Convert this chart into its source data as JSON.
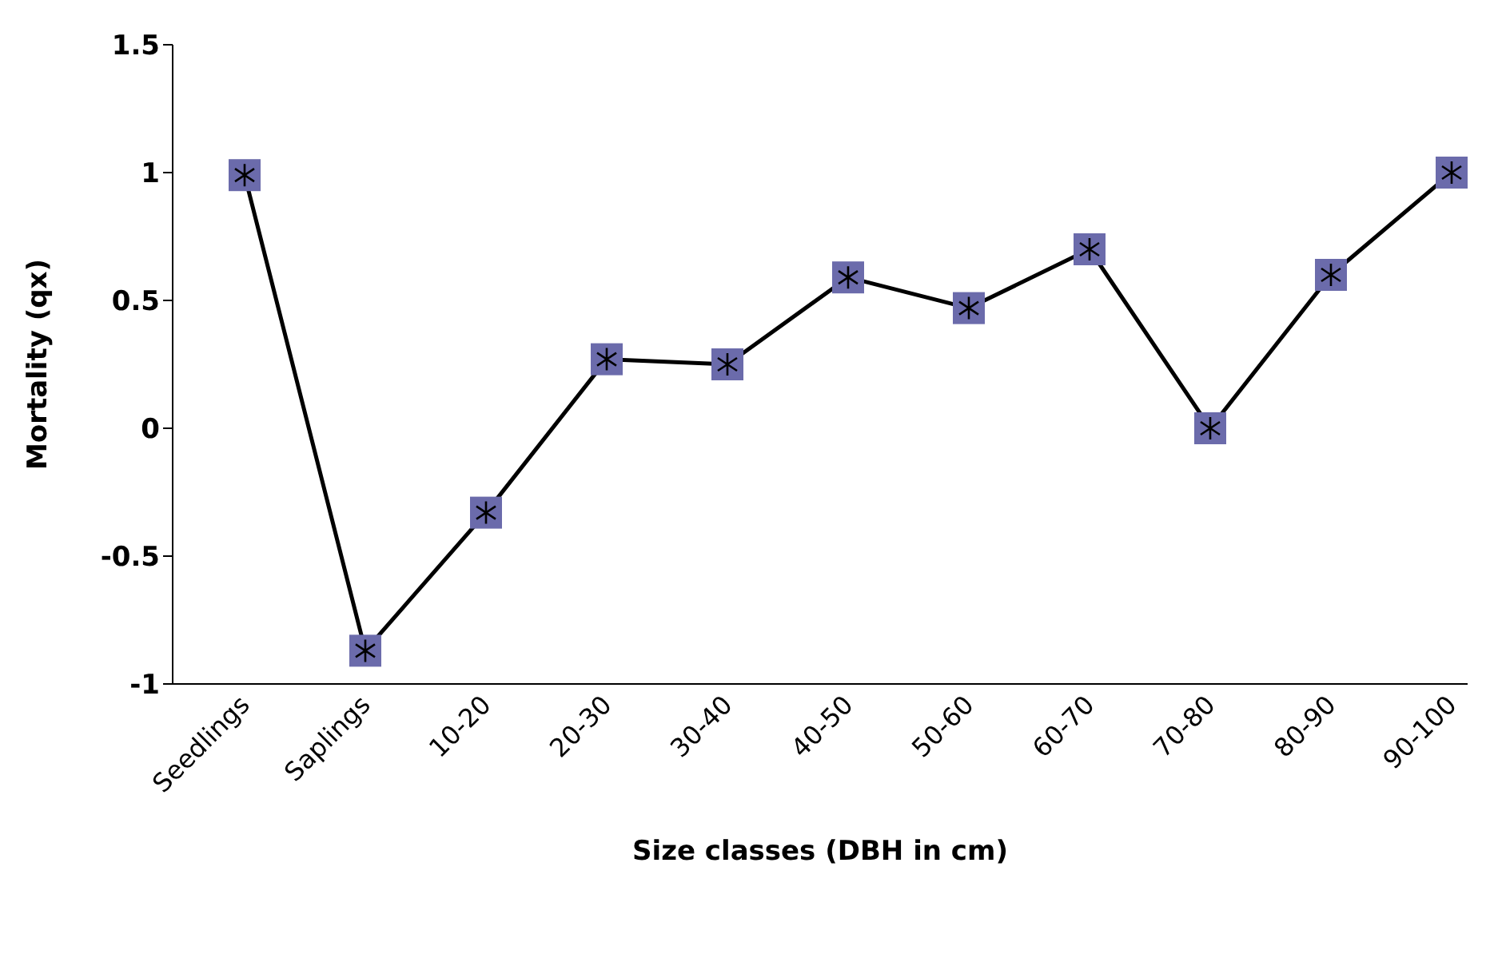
{
  "chart_data": {
    "type": "line",
    "xlabel": "Size classes (DBH in cm)",
    "ylabel": "Mortality (qx)",
    "categories": [
      "Seedlings",
      "Saplings",
      "10-20",
      "20-30",
      "30-40",
      "40-50",
      "50-60",
      "60-70",
      "70-80",
      "80-90",
      "90-100"
    ],
    "series": [
      {
        "color": "#6b6bab",
        "values": [
          0.99,
          -0.87,
          -0.33,
          0.27,
          0.25,
          0.59,
          0.47,
          0.7,
          0.0,
          0.6,
          1.0
        ]
      }
    ],
    "ylim": [
      -1,
      1.5
    ],
    "yticks": [
      -1,
      -0.5,
      0,
      0.5,
      1,
      1.5
    ],
    "grid": false,
    "legend": false,
    "marker": "square",
    "line_style": "solid"
  }
}
